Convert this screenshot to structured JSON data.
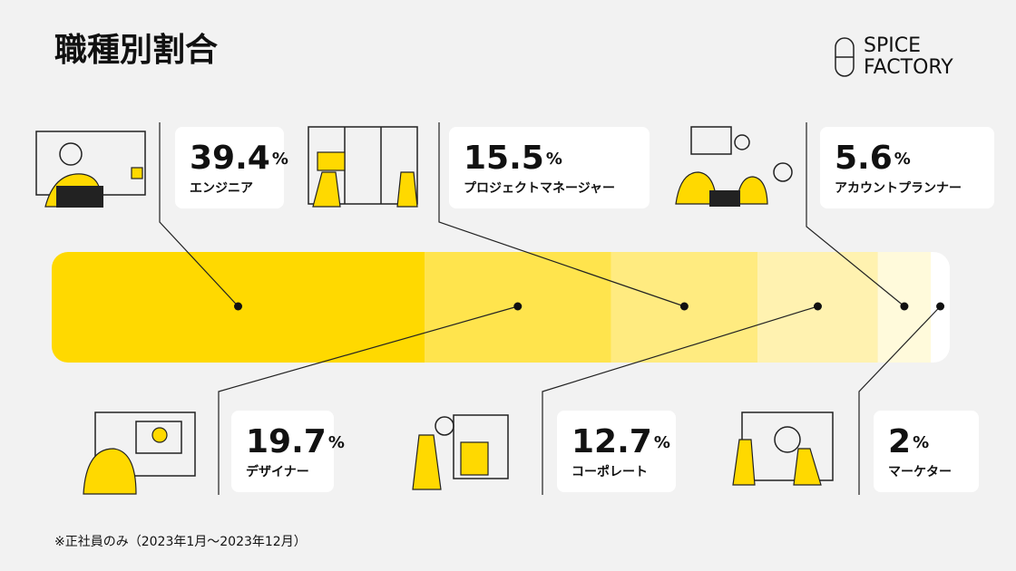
{
  "chart_data": {
    "type": "stacked_bar",
    "title": "職種別割合",
    "logo": [
      "SPICE",
      "FACTORY"
    ],
    "unit": "%",
    "categories": [
      "エンジニア",
      "デザイナー",
      "プロジェクトマネージャー",
      "コーポレート",
      "アカウントプランナー",
      "マーケター"
    ],
    "values": [
      39.4,
      19.7,
      15.5,
      12.7,
      5.6,
      2
    ],
    "colors": [
      "#ffd900",
      "#ffe44d",
      "#ffeb80",
      "#fff2b0",
      "#fffadb",
      "#ffffff"
    ],
    "footnote": "※正社員のみ（2023年1月〜2023年12月）"
  }
}
